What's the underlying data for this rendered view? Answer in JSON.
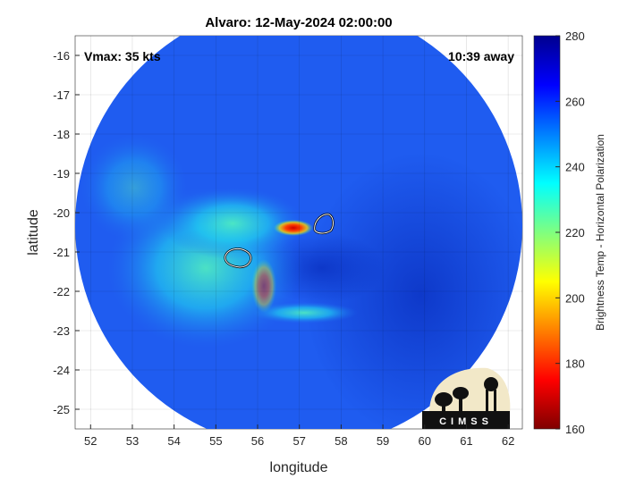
{
  "chart_data": {
    "type": "heatmap",
    "title": "Alvaro: 12-May-2024 02:00:00",
    "xlabel": "longitude",
    "ylabel": "latitude",
    "xlim": [
      51.63,
      62.34
    ],
    "ylim": [
      -25.5,
      -15.5
    ],
    "xticks": [
      52,
      53,
      54,
      55,
      56,
      57,
      58,
      59,
      60,
      61,
      62
    ],
    "yticks": [
      -16,
      -17,
      -18,
      -19,
      -20,
      -21,
      -22,
      -23,
      -24,
      -25
    ],
    "grid": true,
    "colorbar": {
      "label": "Brightness Temp - Horizontal Polarization",
      "clim": [
        160,
        280
      ],
      "ticks": [
        160,
        180,
        200,
        220,
        240,
        260,
        280
      ],
      "colormap": "jet",
      "placement": "right"
    },
    "annotations": {
      "vmax": "Vmax: 35 kts",
      "time_offset": "10:39 away"
    },
    "logo": "CIMSS",
    "features": {
      "coldest_spot": {
        "lon": 56.8,
        "lat": -20.3,
        "value": 175
      },
      "contours": [
        {
          "lon": 57.6,
          "lat": -20.2
        },
        {
          "lon": 55.5,
          "lat": -21.15
        }
      ]
    }
  }
}
